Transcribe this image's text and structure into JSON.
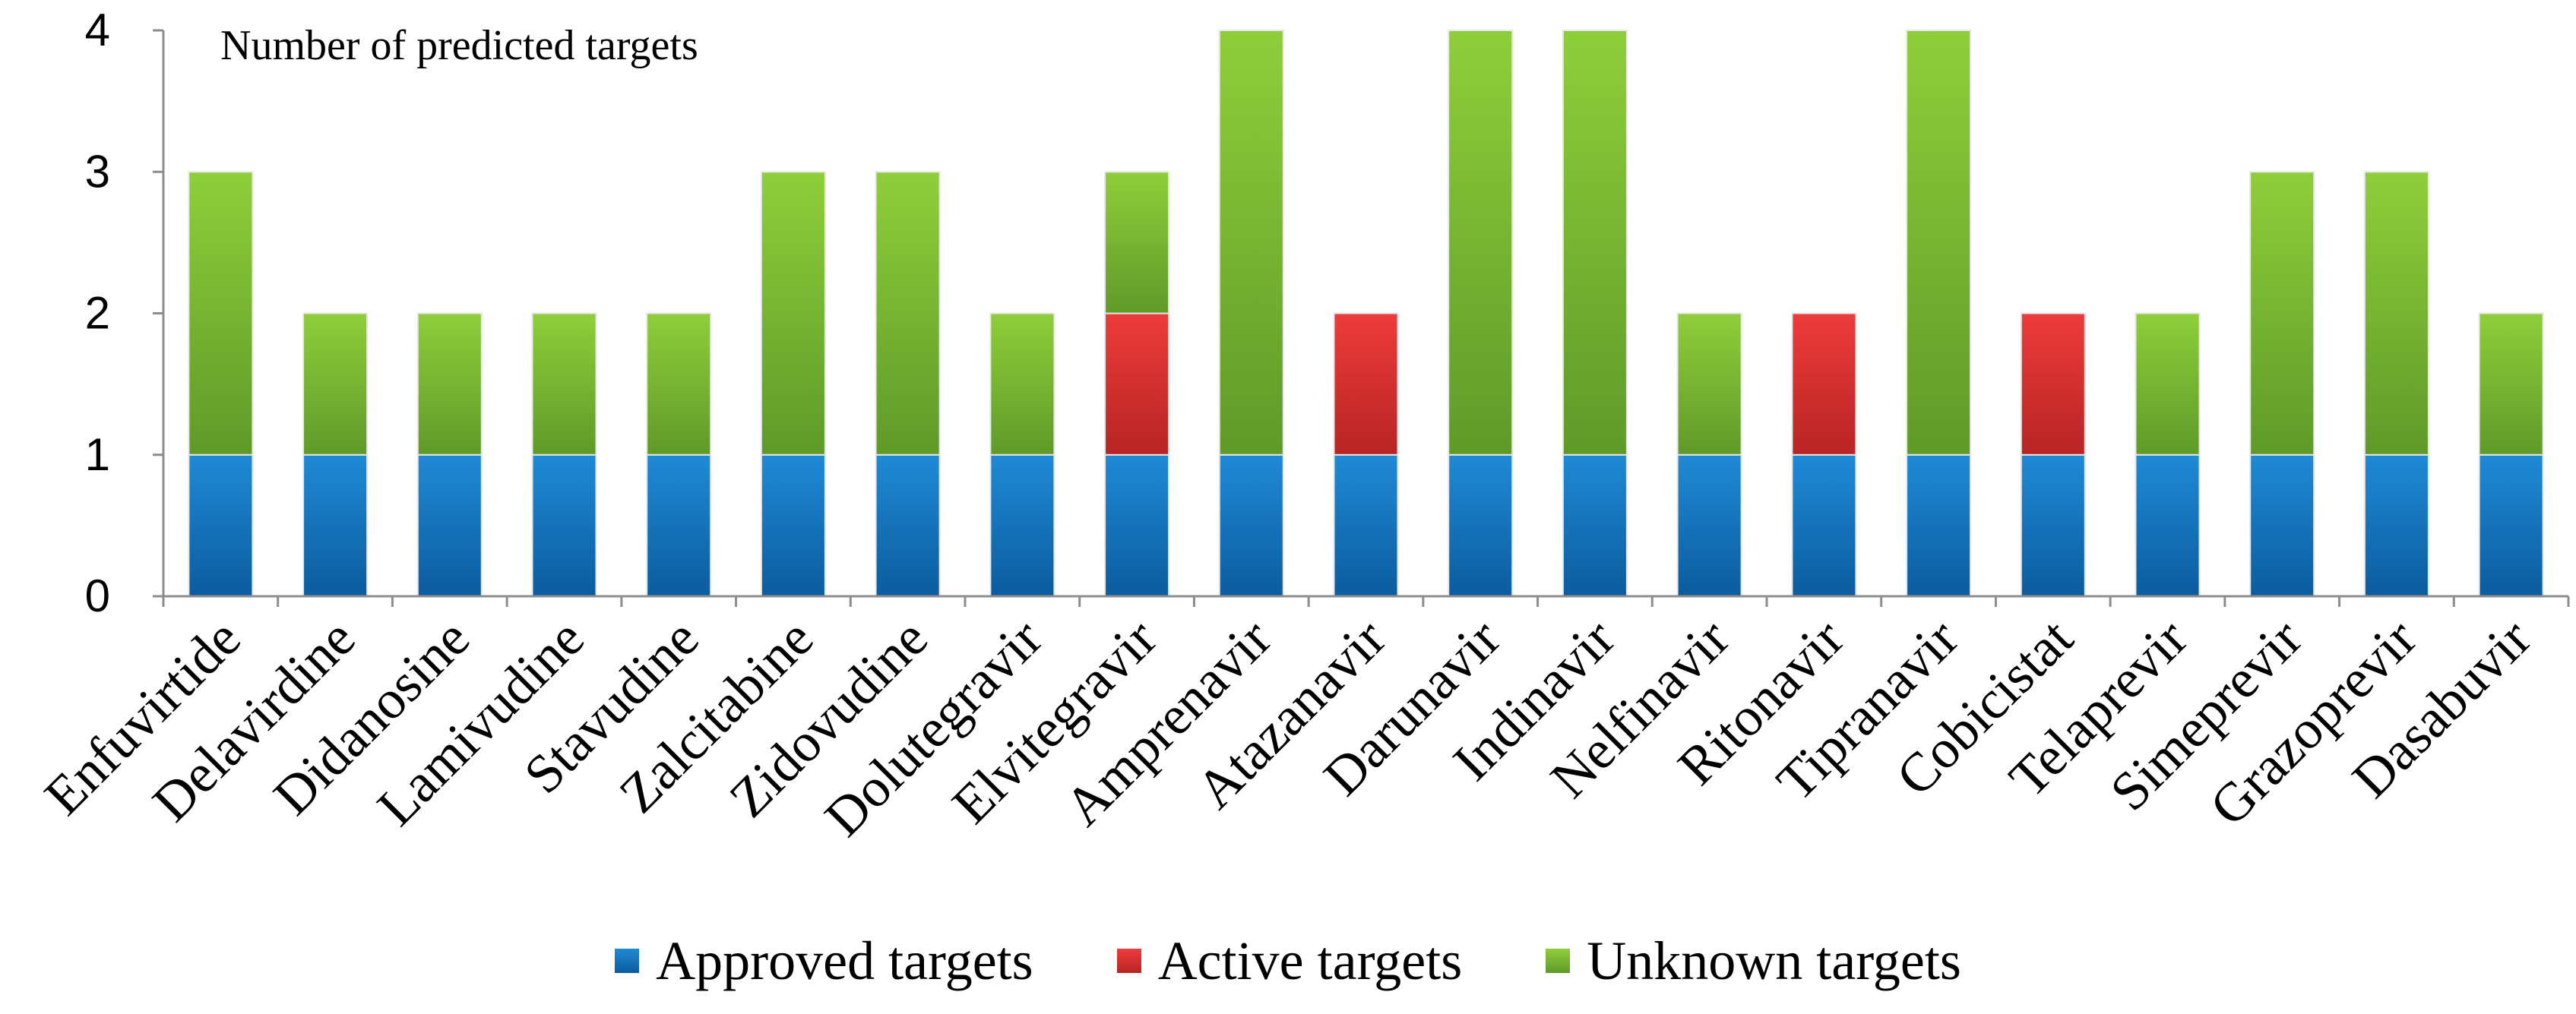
{
  "chart_data": {
    "type": "bar",
    "stacked": true,
    "title": "Number of  predicted targets",
    "xlabel": "",
    "ylabel": "",
    "ylim": [
      0,
      4
    ],
    "yticks": [
      "0",
      "1",
      "2",
      "3",
      "4"
    ],
    "grid": false,
    "legend_position": "bottom",
    "categories": [
      "Enfuvirtide",
      "Delavirdine",
      "Didanosine",
      "Lamivudine",
      "Stavudine",
      "Zalcitabine",
      "Zidovudine",
      "Dolutegravir",
      "Elvitegravir",
      "Amprenavir",
      "Atazanavir",
      "Darunavir",
      "Indinavir",
      "Nelfinavir",
      "Ritonavir",
      "Tipranavir",
      "Cobicistat",
      "Telaprevir",
      "Simeprevir",
      "Grazoprevir",
      "Dasabuvir"
    ],
    "series": [
      {
        "name": "Approved targets",
        "color_top": "#1f8ad6",
        "color_bottom": "#0b5c9e",
        "values": [
          1,
          1,
          1,
          1,
          1,
          1,
          1,
          1,
          1,
          1,
          1,
          1,
          1,
          1,
          1,
          1,
          1,
          1,
          1,
          1,
          1
        ]
      },
      {
        "name": "Active targets",
        "color_top": "#ee3b3b",
        "color_bottom": "#b82424",
        "values": [
          0,
          0,
          0,
          0,
          0,
          0,
          0,
          0,
          1,
          0,
          1,
          0,
          0,
          0,
          1,
          0,
          1,
          0,
          0,
          0,
          0
        ]
      },
      {
        "name": "Unknown targets",
        "color_top": "#8fce3a",
        "color_bottom": "#5f9a29",
        "values": [
          2,
          1,
          1,
          1,
          1,
          2,
          2,
          1,
          1,
          3,
          0,
          3,
          3,
          1,
          0,
          3,
          0,
          1,
          2,
          2,
          1
        ]
      }
    ]
  }
}
